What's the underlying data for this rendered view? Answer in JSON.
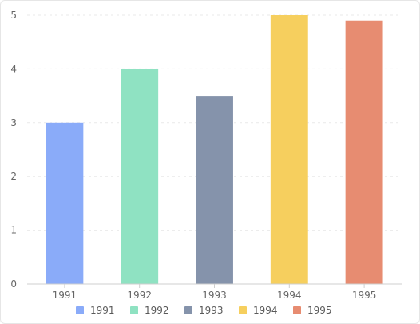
{
  "chart_data": {
    "type": "bar",
    "categories": [
      "1991",
      "1992",
      "1993",
      "1994",
      "1995"
    ],
    "values": [
      3,
      4,
      3.5,
      5,
      4.9
    ],
    "colors": [
      "#8AABF9",
      "#8FE2C2",
      "#8593AB",
      "#F6CF5E",
      "#E78C71"
    ],
    "ylim": [
      0,
      5
    ],
    "yticks": [
      "0",
      "1",
      "2",
      "3",
      "4",
      "5"
    ],
    "legend": {
      "placement": "bottom",
      "items": [
        "1991",
        "1992",
        "1993",
        "1994",
        "1995"
      ]
    },
    "grid": "horizontal-dashed"
  }
}
